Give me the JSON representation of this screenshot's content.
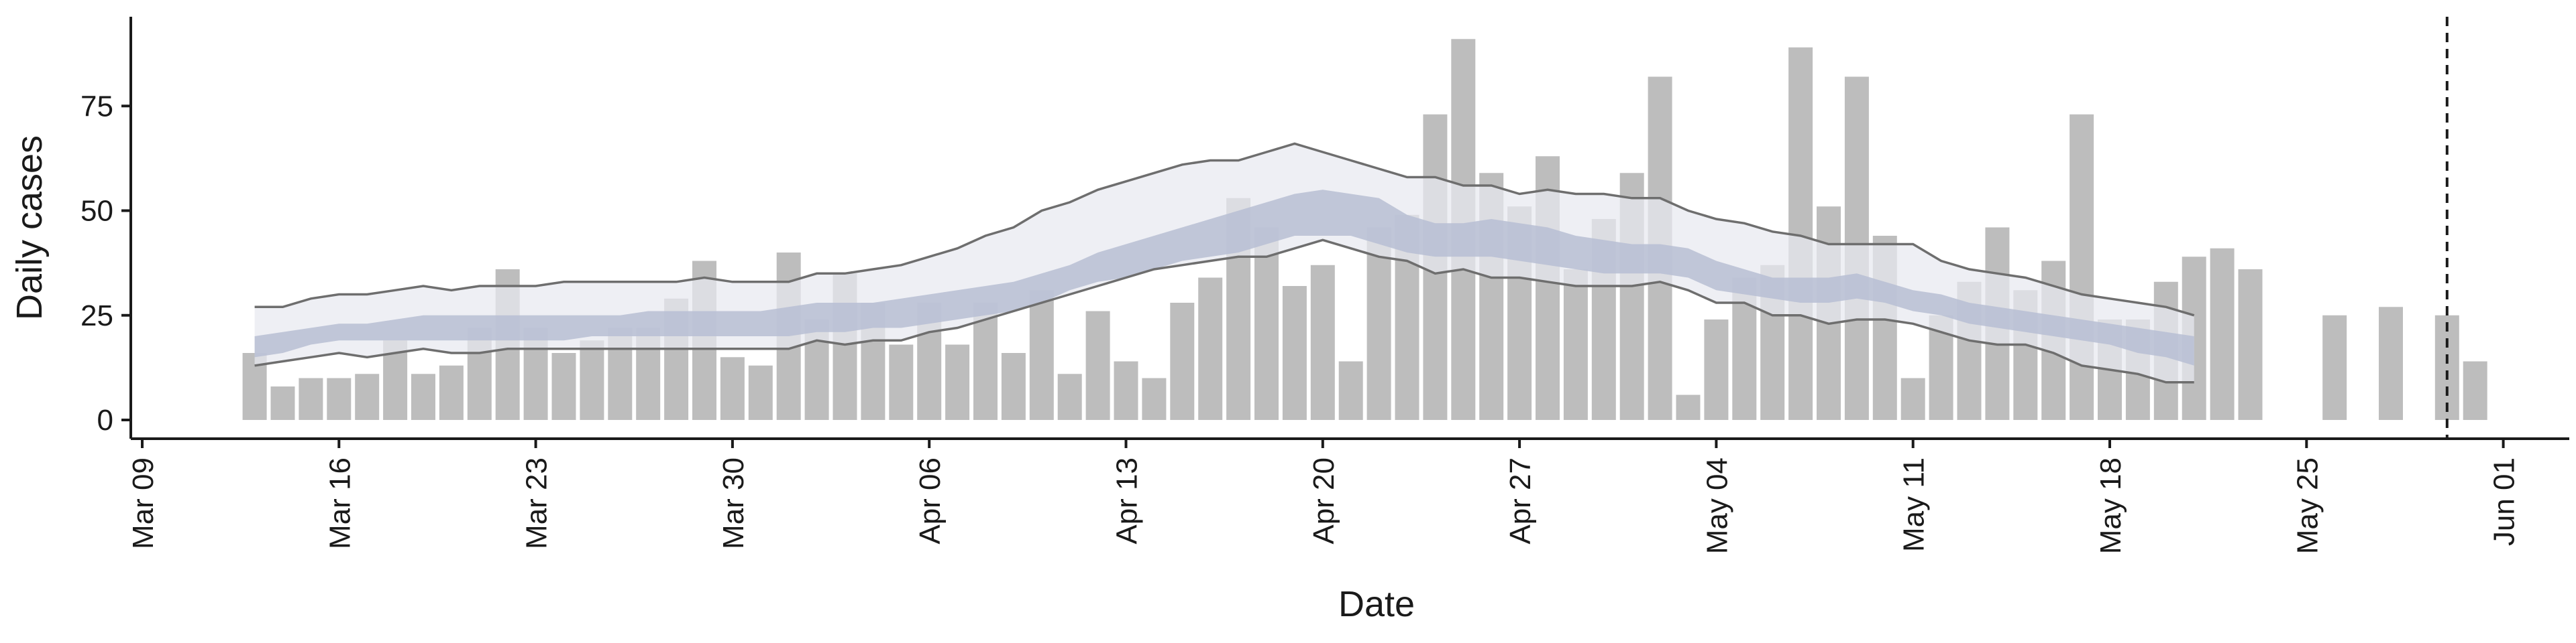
{
  "chart_data": {
    "type": "bar",
    "xlabel": "Date",
    "ylabel": "Daily cases",
    "ylim": [
      0,
      95
    ],
    "yticks": [
      0,
      25,
      50,
      75
    ],
    "xtick_labels": [
      "Mar 09",
      "Mar 16",
      "Mar 23",
      "Mar 30",
      "Apr 06",
      "Apr 13",
      "Apr 20",
      "Apr 27",
      "May 04",
      "May 11",
      "May 18",
      "May 25",
      "Jun 01"
    ],
    "x_start": "Mar 13",
    "bars": [
      16,
      8,
      10,
      10,
      11,
      19,
      11,
      13,
      22,
      36,
      22,
      16,
      19,
      22,
      22,
      29,
      38,
      15,
      13,
      40,
      24,
      35,
      28,
      18,
      28,
      18,
      28,
      16,
      31,
      11,
      26,
      14,
      10,
      28,
      34,
      53,
      46,
      32,
      37,
      14,
      46,
      49,
      73,
      91,
      59,
      51,
      63,
      36,
      48,
      59,
      82,
      6,
      24,
      34,
      37,
      89,
      51,
      82,
      44,
      10,
      25,
      33,
      46,
      31,
      38,
      73,
      24,
      24,
      33,
      39,
      41,
      36,
      null,
      null,
      25,
      null,
      27,
      null,
      25,
      14
    ],
    "bands": {
      "start": "Mar 13",
      "outer_upper": [
        27,
        27,
        29,
        30,
        30,
        31,
        32,
        31,
        32,
        32,
        32,
        33,
        33,
        33,
        33,
        33,
        34,
        33,
        33,
        33,
        35,
        35,
        36,
        37,
        39,
        41,
        44,
        46,
        50,
        52,
        55,
        57,
        59,
        61,
        62,
        62,
        64,
        66,
        64,
        62,
        60,
        58,
        58,
        56,
        56,
        54,
        55,
        54,
        54,
        53,
        53,
        50,
        48,
        47,
        45,
        44,
        42,
        42,
        42,
        42,
        38,
        36,
        35,
        34,
        32,
        30,
        29,
        28,
        27,
        25
      ],
      "inner_upper": [
        20,
        21,
        22,
        23,
        23,
        24,
        25,
        25,
        25,
        25,
        25,
        25,
        25,
        25,
        26,
        26,
        26,
        26,
        26,
        27,
        28,
        28,
        28,
        29,
        30,
        31,
        32,
        33,
        35,
        37,
        40,
        42,
        44,
        46,
        48,
        50,
        52,
        54,
        55,
        54,
        53,
        49,
        47,
        47,
        48,
        47,
        46,
        44,
        43,
        42,
        42,
        41,
        38,
        36,
        34,
        34,
        34,
        35,
        33,
        31,
        30,
        28,
        27,
        26,
        25,
        24,
        23,
        22,
        21,
        20
      ],
      "inner_lower": [
        15,
        16,
        18,
        19,
        19,
        19,
        19,
        19,
        19,
        19,
        19,
        19,
        20,
        20,
        20,
        20,
        20,
        20,
        20,
        20,
        21,
        21,
        22,
        22,
        23,
        24,
        25,
        26,
        28,
        31,
        33,
        34,
        36,
        38,
        39,
        40,
        42,
        44,
        44,
        44,
        42,
        40,
        39,
        39,
        39,
        38,
        37,
        36,
        35,
        35,
        35,
        34,
        31,
        30,
        29,
        28,
        28,
        29,
        28,
        26,
        25,
        23,
        22,
        21,
        20,
        19,
        18,
        16,
        15,
        13
      ],
      "outer_lower": [
        13,
        14,
        15,
        16,
        15,
        16,
        17,
        16,
        16,
        17,
        17,
        17,
        17,
        17,
        17,
        17,
        17,
        17,
        17,
        17,
        19,
        18,
        19,
        19,
        21,
        22,
        24,
        26,
        28,
        30,
        32,
        34,
        36,
        37,
        38,
        39,
        39,
        41,
        43,
        41,
        39,
        38,
        35,
        36,
        34,
        34,
        33,
        32,
        32,
        32,
        33,
        31,
        28,
        28,
        25,
        25,
        23,
        24,
        24,
        23,
        21,
        19,
        18,
        18,
        16,
        13,
        12,
        11,
        9,
        9
      ]
    },
    "vline_date": "May 30"
  },
  "colors": {
    "bar": "#bdbdbd",
    "outer_band": "#e7e9f0",
    "inner_band": "#c6cbdd",
    "overlay": "#8b93b3",
    "band_line": "#6e6e6e",
    "axis": "#1a1a1a"
  }
}
